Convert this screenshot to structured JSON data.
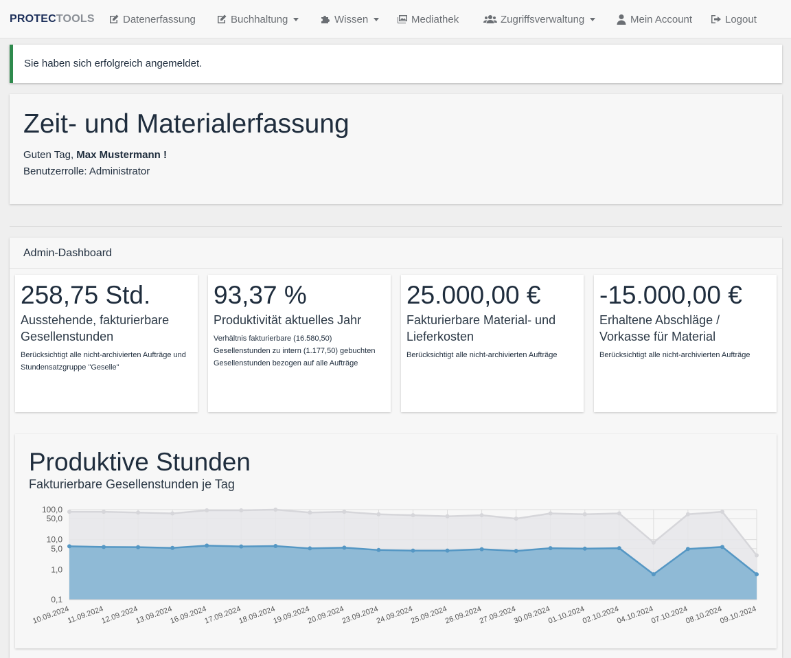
{
  "brand": {
    "part1": "PROTEC",
    "part2": "TOOLS"
  },
  "nav": [
    {
      "label": "Datenerfassung",
      "icon": "edit-icon",
      "dropdown": false
    },
    {
      "label": "Buchhaltung",
      "icon": "edit-icon",
      "dropdown": true
    },
    {
      "label": "Wissen",
      "icon": "puzzle-icon",
      "dropdown": true
    },
    {
      "label": "Mediathek",
      "icon": "images-icon",
      "dropdown": false
    },
    {
      "label": "Zugriffsverwaltung",
      "icon": "users-icon",
      "dropdown": true
    },
    {
      "label": "Mein Account",
      "icon": "user-icon",
      "dropdown": false
    },
    {
      "label": "Logout",
      "icon": "sign-out-icon",
      "dropdown": false
    }
  ],
  "alert": {
    "text": "Sie haben sich erfolgreich angemeldet."
  },
  "hero": {
    "title": "Zeit- und Materialerfassung",
    "greeting_prefix": "Guten Tag,",
    "user_name": "Max Mustermann !",
    "role": "Benutzerrolle: Administrator"
  },
  "dashboard": {
    "title": "Admin-Dashboard",
    "stats": [
      {
        "value": "258,75 Std.",
        "label": "Ausstehende, fakturierbare Gesellenstunden",
        "desc": "Berücksichtigt alle nicht-archivierten Aufträge und Stundensatzgruppe \"Geselle\""
      },
      {
        "value": "93,37 %",
        "label": "Produktivität aktuelles Jahr",
        "desc": "Verhältnis fakturierbare (16.580,50) Gesellenstunden zu intern (1.177,50) gebuchten Gesellenstunden bezogen auf alle Aufträge"
      },
      {
        "value": "25.000,00 €",
        "label": "Fakturierbare Material- und Lieferkosten",
        "desc": "Berücksichtigt alle nicht-archivierten Aufträge"
      },
      {
        "value": "-15.000,00 €",
        "label": "Erhaltene Abschläge / Vorkasse für Material",
        "desc": "Berücksichtigt alle nicht-archivierten Aufträge"
      }
    ]
  },
  "colors": {
    "accent_alert": "#2f8a4d",
    "series_fill": "#8fbad6",
    "series_line": "#5597c4",
    "bg_fill": "#e6e6ea",
    "bg_line": "#d6d6da"
  },
  "chart_data": {
    "type": "area",
    "title": "Produktive Stunden",
    "subtitle": "Fakturierbare Gesellenstunden je Tag",
    "y_scale": "log",
    "ylim": [
      0.1,
      100
    ],
    "y_ticks": [
      "100,0",
      "50,0",
      "10,0",
      "5,0",
      "1,0",
      "0,1"
    ],
    "y_tick_values": [
      100,
      50,
      10,
      5,
      1,
      0.1
    ],
    "grid": true,
    "legend": "none",
    "x": [
      "10.09.2024",
      "11.09.2024",
      "12.09.2024",
      "13.09.2024",
      "16.09.2024",
      "17.09.2024",
      "18.09.2024",
      "19.09.2024",
      "20.09.2024",
      "23.09.2024",
      "24.09.2024",
      "25.09.2024",
      "26.09.2024",
      "27.09.2024",
      "30.09.2024",
      "01.10.2024",
      "02.10.2024",
      "04.10.2024",
      "07.10.2024",
      "08.10.2024",
      "09.10.2024"
    ],
    "series": [
      {
        "values": [
          85,
          85,
          80,
          75,
          95,
          95,
          100,
          80,
          85,
          70,
          65,
          60,
          65,
          50,
          75,
          70,
          75,
          8,
          70,
          85,
          3
        ]
      },
      {
        "values": [
          6.0,
          5.7,
          5.6,
          5.3,
          6.3,
          5.9,
          6.1,
          5.1,
          5.4,
          4.5,
          4.3,
          4.3,
          4.8,
          4.2,
          5.2,
          5.0,
          5.2,
          0.7,
          4.9,
          5.7,
          0.7
        ]
      }
    ]
  }
}
